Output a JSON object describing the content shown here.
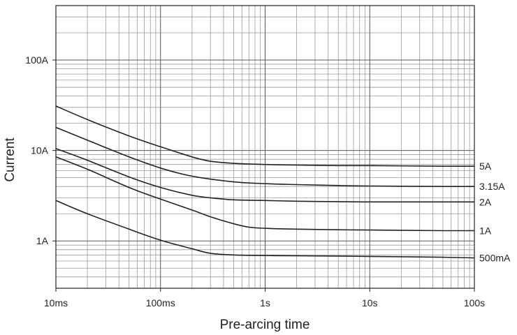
{
  "chart_data": {
    "type": "line",
    "title": "",
    "xlabel": "Pre-arcing time",
    "ylabel": "Current",
    "x_scale": "log",
    "y_scale": "log",
    "xlim_seconds": [
      0.01,
      100
    ],
    "ylim_amps": [
      0.3,
      400
    ],
    "grid": true,
    "x_ticks": [
      {
        "value": 0.01,
        "label": "10ms"
      },
      {
        "value": 0.1,
        "label": "100ms"
      },
      {
        "value": 1,
        "label": "1s"
      },
      {
        "value": 10,
        "label": "10s"
      },
      {
        "value": 100,
        "label": "100s"
      }
    ],
    "y_ticks": [
      {
        "value": 1,
        "label": "1A"
      },
      {
        "value": 10,
        "label": "10A"
      },
      {
        "value": 100,
        "label": "100A"
      }
    ],
    "series": [
      {
        "name": "5A",
        "x": [
          0.01,
          0.02,
          0.05,
          0.1,
          0.2,
          0.3,
          0.5,
          1,
          2,
          5,
          10,
          50,
          100
        ],
        "y": [
          31,
          22,
          14.5,
          11,
          8.5,
          7.6,
          7.2,
          7.0,
          6.9,
          6.8,
          6.8,
          6.7,
          6.7
        ]
      },
      {
        "name": "3.15A",
        "x": [
          0.01,
          0.02,
          0.05,
          0.1,
          0.2,
          0.5,
          1,
          2,
          5,
          10,
          50,
          100
        ],
        "y": [
          18,
          13,
          8.5,
          6.4,
          5.2,
          4.5,
          4.3,
          4.2,
          4.1,
          4.05,
          4.0,
          4.0
        ]
      },
      {
        "name": "2A",
        "x": [
          0.01,
          0.02,
          0.05,
          0.1,
          0.2,
          0.3,
          0.5,
          1,
          2,
          5,
          10,
          50,
          100
        ],
        "y": [
          10.5,
          7.8,
          5.1,
          3.9,
          3.2,
          3.0,
          2.85,
          2.8,
          2.75,
          2.72,
          2.7,
          2.7,
          2.7
        ]
      },
      {
        "name": "1A",
        "x": [
          0.01,
          0.02,
          0.05,
          0.1,
          0.2,
          0.3,
          0.5,
          0.7,
          1,
          2,
          5,
          10,
          50,
          100
        ],
        "y": [
          8.5,
          6.2,
          3.9,
          2.9,
          2.2,
          1.85,
          1.55,
          1.42,
          1.38,
          1.35,
          1.33,
          1.32,
          1.3,
          1.3
        ]
      },
      {
        "name": "500mA",
        "x": [
          0.01,
          0.02,
          0.05,
          0.1,
          0.2,
          0.3,
          0.5,
          1,
          2,
          5,
          10,
          50,
          100
        ],
        "y": [
          2.8,
          2.0,
          1.35,
          1.02,
          0.82,
          0.73,
          0.7,
          0.69,
          0.685,
          0.68,
          0.675,
          0.66,
          0.65
        ]
      }
    ]
  }
}
